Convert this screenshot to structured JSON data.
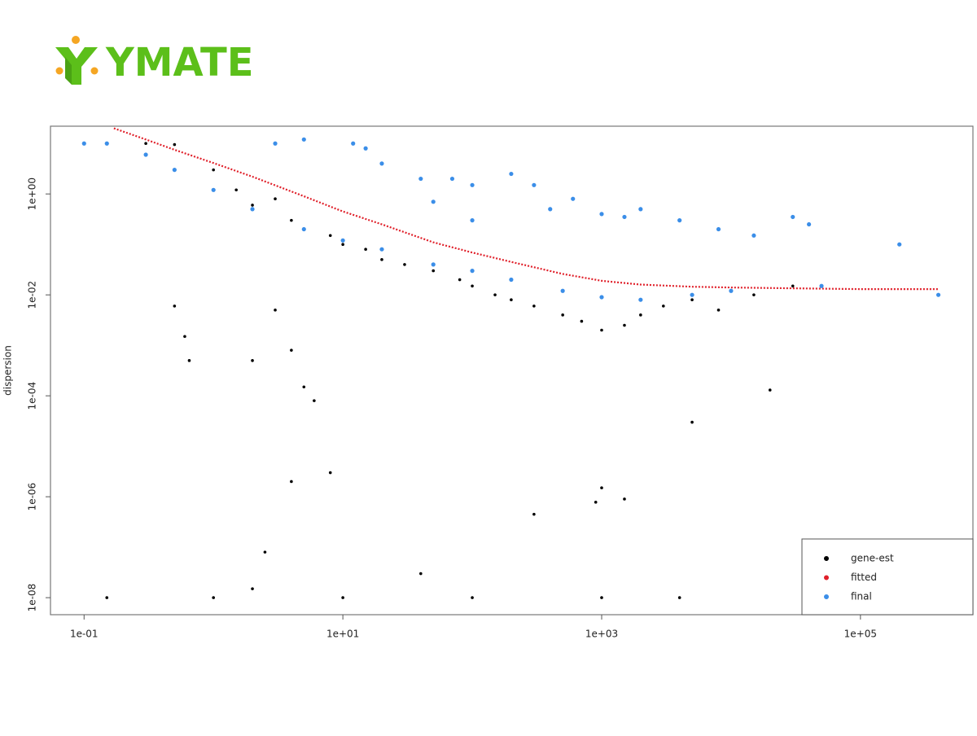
{
  "logo": "YMATE",
  "chart_data": {
    "type": "scatter",
    "y_label": "dispersion",
    "log_x": true,
    "log_y": true,
    "xlim": [
      0.055,
      740000
    ],
    "ylim": [
      4.6e-09,
      22
    ],
    "xticks": [
      {
        "value": 0.1,
        "label": "1e-01"
      },
      {
        "value": 10,
        "label": "1e+01"
      },
      {
        "value": 1000,
        "label": "1e+03"
      },
      {
        "value": 100000,
        "label": "1e+05"
      }
    ],
    "yticks": [
      {
        "value": 1e-08,
        "label": "1e-08"
      },
      {
        "value": 1e-06,
        "label": "1e-06"
      },
      {
        "value": 0.0001,
        "label": "1e-04"
      },
      {
        "value": 0.01,
        "label": "1e-02"
      },
      {
        "value": 1,
        "label": "1e+00"
      }
    ],
    "legend": "bottom-right",
    "series": [
      {
        "name": "gene-est",
        "color": "#000000",
        "x": [
          0.3,
          0.5,
          1,
          1.5,
          2,
          3,
          4,
          5,
          8,
          10,
          15,
          20,
          30,
          50,
          80,
          100,
          150,
          200,
          300,
          500,
          700,
          1000,
          1500,
          2000,
          3000,
          5000,
          8000,
          15000,
          30000,
          0.6,
          0.65,
          2,
          4,
          6,
          5,
          4,
          8,
          2.5,
          2,
          40,
          300,
          900,
          1000,
          1500,
          20000,
          5000,
          0.15,
          1,
          10,
          100,
          1000,
          4000,
          0.5,
          3
        ],
        "values": [
          10,
          9.5,
          3,
          1.2,
          0.6,
          0.8,
          0.3,
          0.2,
          0.15,
          0.1,
          0.08,
          0.05,
          0.04,
          0.03,
          0.02,
          0.015,
          0.01,
          0.008,
          0.006,
          0.004,
          0.003,
          0.002,
          0.0025,
          0.004,
          0.006,
          0.008,
          0.005,
          0.01,
          0.015,
          0.0015,
          0.0005,
          0.0005,
          0.0008,
          8e-05,
          0.00015,
          2e-06,
          3e-06,
          8e-08,
          1.5e-08,
          3e-08,
          4.5e-07,
          7.8e-07,
          1.5e-06,
          9e-07,
          0.00013,
          3e-05,
          1e-08,
          1e-08,
          1e-08,
          1e-08,
          1e-08,
          1e-08,
          0.006,
          0.005
        ]
      },
      {
        "name": "fitted",
        "color": "#e0202a",
        "mode": "line",
        "x": [
          0.17,
          0.3,
          0.5,
          1,
          2,
          5,
          10,
          20,
          50,
          100,
          200,
          500,
          1000,
          2000,
          5000,
          10000,
          30000,
          100000,
          400000
        ],
        "values": [
          20,
          12,
          7.5,
          4.1,
          2.2,
          0.9,
          0.45,
          0.25,
          0.11,
          0.069,
          0.045,
          0.026,
          0.019,
          0.016,
          0.0145,
          0.014,
          0.0135,
          0.013,
          0.013
        ]
      },
      {
        "name": "final",
        "color": "#3b8ee8",
        "x": [
          0.1,
          0.15,
          0.3,
          0.5,
          1,
          2,
          5,
          10,
          20,
          50,
          100,
          200,
          500,
          1000,
          2000,
          5000,
          10000,
          50000,
          3,
          5,
          12,
          15,
          20,
          40,
          70,
          100,
          200,
          300,
          400,
          600,
          1000,
          1500,
          2000,
          4000,
          8000,
          15000,
          30000,
          40000,
          200000,
          400000,
          100,
          50
        ],
        "values": [
          10,
          10,
          6,
          3,
          1.2,
          0.5,
          0.2,
          0.12,
          0.08,
          0.04,
          0.03,
          0.02,
          0.012,
          0.009,
          0.008,
          0.01,
          0.012,
          0.015,
          10,
          12,
          10,
          8,
          4,
          2,
          2,
          1.5,
          2.5,
          1.5,
          0.5,
          0.8,
          0.4,
          0.35,
          0.5,
          0.3,
          0.2,
          0.15,
          0.35,
          0.25,
          0.1,
          0.01,
          0.3,
          0.7
        ]
      }
    ]
  }
}
